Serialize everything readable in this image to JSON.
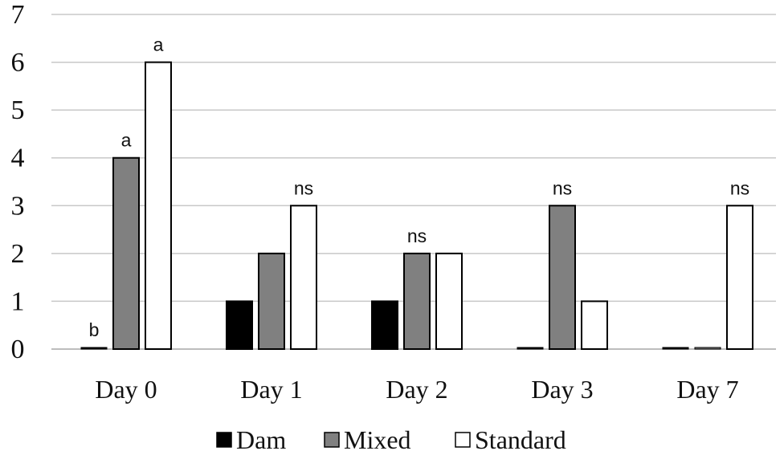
{
  "chart_data": {
    "type": "bar",
    "title": "",
    "xlabel": "",
    "ylabel": "",
    "ylim": [
      0,
      7
    ],
    "yticks": [
      "0",
      "1",
      "2",
      "3",
      "4",
      "5",
      "6",
      "7"
    ],
    "grid": true,
    "legend_position": "bottom",
    "categories": [
      "Day 0",
      "Day 1",
      "Day 2",
      "Day 3",
      "Day 7"
    ],
    "series": [
      {
        "name": "Dam",
        "color": "#000000",
        "values": [
          0,
          1,
          1,
          0,
          0
        ]
      },
      {
        "name": "Mixed",
        "color": "#808080",
        "values": [
          4,
          2,
          2,
          3,
          0
        ]
      },
      {
        "name": "Standard",
        "color": "#ffffff",
        "values": [
          6,
          3,
          2,
          1,
          3
        ]
      }
    ],
    "annotations": [
      {
        "category": "Day 0",
        "series": "Dam",
        "text": "b"
      },
      {
        "category": "Day 0",
        "series": "Mixed",
        "text": "a"
      },
      {
        "category": "Day 0",
        "series": "Standard",
        "text": "a"
      },
      {
        "category": "Day 1",
        "series": "Standard",
        "text": "ns"
      },
      {
        "category": "Day 2",
        "series": "Mixed",
        "text": "ns"
      },
      {
        "category": "Day 3",
        "series": "Mixed",
        "text": "ns"
      },
      {
        "category": "Day 7",
        "series": "Standard",
        "text": "ns"
      }
    ]
  }
}
